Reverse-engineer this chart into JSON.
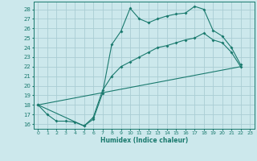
{
  "xlabel": "Humidex (Indice chaleur)",
  "bg_color": "#cce8ec",
  "grid_color": "#aacdd4",
  "line_color": "#1a7a6e",
  "xlim": [
    -0.5,
    23.5
  ],
  "ylim": [
    15.5,
    28.8
  ],
  "xticks": [
    0,
    1,
    2,
    3,
    4,
    5,
    6,
    7,
    8,
    9,
    10,
    11,
    12,
    13,
    14,
    15,
    16,
    17,
    18,
    19,
    20,
    21,
    22,
    23
  ],
  "yticks": [
    16,
    17,
    18,
    19,
    20,
    21,
    22,
    23,
    24,
    25,
    26,
    27,
    28
  ],
  "line1_x": [
    0,
    1,
    2,
    3,
    4,
    5,
    6,
    7,
    8,
    9,
    10,
    11,
    12,
    13,
    14,
    15,
    16,
    17,
    18,
    19,
    20,
    21,
    22
  ],
  "line1_y": [
    18.0,
    17.0,
    16.3,
    16.3,
    16.2,
    15.8,
    16.5,
    19.2,
    24.3,
    25.7,
    28.1,
    27.0,
    26.6,
    27.0,
    27.3,
    27.5,
    27.6,
    28.3,
    28.0,
    25.8,
    25.2,
    24.0,
    22.2
  ],
  "line2_x": [
    0,
    5,
    6,
    7,
    8,
    9,
    10,
    11,
    12,
    13,
    14,
    15,
    16,
    17,
    18,
    19,
    20,
    21,
    22
  ],
  "line2_y": [
    18.0,
    15.8,
    16.7,
    19.5,
    21.0,
    22.0,
    22.5,
    23.0,
    23.5,
    24.0,
    24.2,
    24.5,
    24.8,
    25.0,
    25.5,
    24.8,
    24.5,
    23.5,
    22.0
  ],
  "line3_x": [
    0,
    22
  ],
  "line3_y": [
    18.0,
    22.0
  ]
}
